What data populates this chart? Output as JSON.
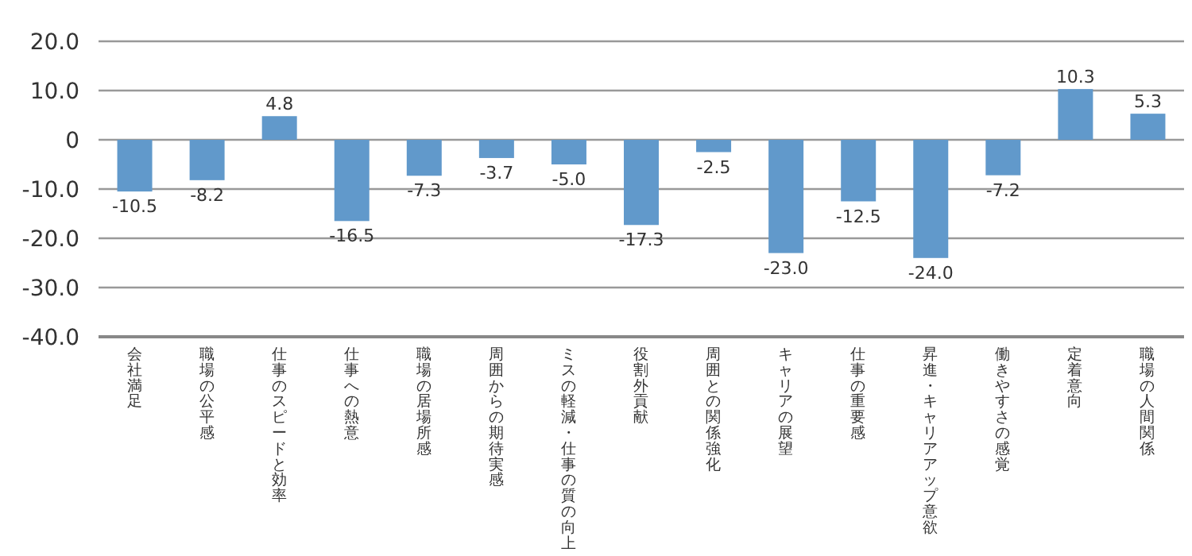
{
  "chart_data": {
    "type": "bar",
    "categories": [
      "会社満足",
      "職場の公平感",
      "仕事のスピードと効率",
      "仕事への熱意",
      "職場の居場所感",
      "周囲からの期待実感",
      "ミスの軽減・仕事の質の向上",
      "役割外貢献",
      "周囲との関係強化",
      "キャリアの展望",
      "仕事の重要感",
      "昇進・キャリアアップ意欲",
      "働きやすさの感覚",
      "定着意向",
      "職場の人間関係"
    ],
    "values": [
      -10.5,
      -8.2,
      4.8,
      -16.5,
      -7.3,
      -3.7,
      -5.0,
      -17.3,
      -2.5,
      -23.0,
      -12.5,
      -24.0,
      -7.2,
      10.3,
      5.3
    ],
    "value_labels": [
      "-10.5",
      "-8.2",
      "4.8",
      "-16.5",
      "-7.3",
      "-3.7",
      "-5.0",
      "-17.3",
      "-2.5",
      "-23.0",
      "-12.5",
      "-24.0",
      "-7.2",
      "10.3",
      "5.3"
    ],
    "color": "#6199cb",
    "ylim": [
      -40,
      20
    ],
    "yticks": [
      {
        "value": -40,
        "label": "-40.0"
      },
      {
        "value": -30,
        "label": "-30.0"
      },
      {
        "value": -20,
        "label": "-20.0"
      },
      {
        "value": -10,
        "label": "-10.0"
      },
      {
        "value": 0,
        "label": "0"
      },
      {
        "value": 10,
        "label": "10.0"
      },
      {
        "value": 20,
        "label": "20.0"
      }
    ],
    "grid": "y"
  }
}
